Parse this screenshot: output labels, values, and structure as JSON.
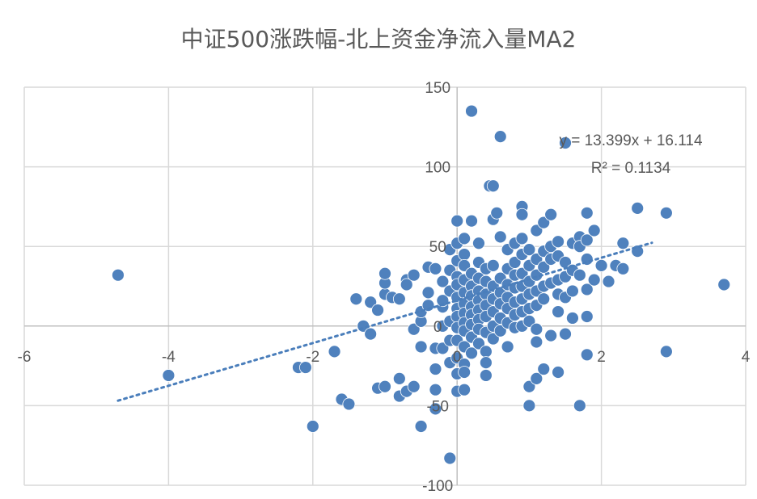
{
  "chart_data": {
    "type": "scatter",
    "title": "中证500涨跌幅-北上资金净流入量MA2",
    "xlabel": "",
    "ylabel": "",
    "xlim": [
      -6,
      4
    ],
    "ylim": [
      -100,
      150
    ],
    "x_ticks": [
      -6,
      -4,
      -2,
      0,
      2,
      4
    ],
    "y_ticks": [
      -100,
      -50,
      0,
      50,
      100,
      150
    ],
    "x_tick_labels": [
      "-6",
      "-4",
      "-2",
      "0",
      "2",
      "4"
    ],
    "y_tick_labels": [
      "-100",
      "-50",
      "0",
      "50",
      "100",
      "150"
    ],
    "grid": true,
    "color": "#4f81bd",
    "trendline": {
      "type": "linear",
      "slope": 13.399,
      "intercept": 16.114,
      "x_range": [
        -4.7,
        2.7
      ],
      "equation": "y = 13.399x + 16.114",
      "r_squared": "R² = 0.1134",
      "color": "#4a7ebb"
    },
    "points": [
      [
        -4.7,
        32
      ],
      [
        -4.0,
        -31
      ],
      [
        -2.2,
        -26
      ],
      [
        -2.1,
        -26
      ],
      [
        -2.0,
        -63
      ],
      [
        -1.6,
        -46
      ],
      [
        -1.7,
        -16
      ],
      [
        -1.5,
        -49
      ],
      [
        -1.4,
        17
      ],
      [
        -1.3,
        0
      ],
      [
        -1.2,
        -5
      ],
      [
        -1.1,
        -39
      ],
      [
        -1.0,
        -38
      ],
      [
        -1.2,
        15
      ],
      [
        -1.1,
        10
      ],
      [
        -1.0,
        20
      ],
      [
        -1.0,
        27
      ],
      [
        -1.0,
        33
      ],
      [
        -0.9,
        18
      ],
      [
        -0.8,
        17
      ],
      [
        -0.8,
        -44
      ],
      [
        -0.8,
        -33
      ],
      [
        -0.7,
        -41
      ],
      [
        -0.7,
        29
      ],
      [
        -0.7,
        26
      ],
      [
        -0.6,
        32
      ],
      [
        -0.6,
        -2
      ],
      [
        -0.6,
        -38
      ],
      [
        -0.5,
        -63
      ],
      [
        -0.5,
        3
      ],
      [
        -0.5,
        9
      ],
      [
        -0.5,
        -13
      ],
      [
        -0.4,
        21
      ],
      [
        -0.4,
        13
      ],
      [
        -0.4,
        37
      ],
      [
        -0.3,
        36
      ],
      [
        -0.3,
        -52
      ],
      [
        -0.3,
        -40
      ],
      [
        -0.3,
        -27
      ],
      [
        -0.3,
        -14
      ],
      [
        -0.2,
        28
      ],
      [
        -0.2,
        12
      ],
      [
        -0.2,
        0
      ],
      [
        -0.2,
        16
      ],
      [
        -0.2,
        -14
      ],
      [
        -0.1,
        48
      ],
      [
        -0.1,
        35
      ],
      [
        -0.1,
        22
      ],
      [
        -0.1,
        3
      ],
      [
        -0.1,
        -9
      ],
      [
        -0.1,
        -23
      ],
      [
        -0.1,
        -83
      ],
      [
        0.0,
        66
      ],
      [
        0.0,
        52
      ],
      [
        0.0,
        41
      ],
      [
        0.0,
        31
      ],
      [
        0.0,
        26
      ],
      [
        0.0,
        18
      ],
      [
        0.0,
        11
      ],
      [
        0.0,
        6
      ],
      [
        0.0,
        -1
      ],
      [
        0.0,
        -9
      ],
      [
        0.0,
        -20
      ],
      [
        0.0,
        -30
      ],
      [
        0.0,
        -41
      ],
      [
        0.1,
        55
      ],
      [
        0.1,
        45
      ],
      [
        0.1,
        38
      ],
      [
        0.1,
        29
      ],
      [
        0.1,
        21
      ],
      [
        0.1,
        14
      ],
      [
        0.1,
        8
      ],
      [
        0.1,
        2
      ],
      [
        0.1,
        -3
      ],
      [
        0.1,
        -13
      ],
      [
        0.1,
        -24
      ],
      [
        0.1,
        -29
      ],
      [
        0.1,
        -40
      ],
      [
        0.2,
        135
      ],
      [
        0.2,
        66
      ],
      [
        0.2,
        33
      ],
      [
        0.2,
        25
      ],
      [
        0.2,
        19
      ],
      [
        0.2,
        12
      ],
      [
        0.2,
        7
      ],
      [
        0.2,
        1
      ],
      [
        0.2,
        -7
      ],
      [
        0.2,
        -17
      ],
      [
        0.3,
        52
      ],
      [
        0.3,
        40
      ],
      [
        0.3,
        30
      ],
      [
        0.3,
        22
      ],
      [
        0.3,
        16
      ],
      [
        0.3,
        10
      ],
      [
        0.3,
        4
      ],
      [
        0.3,
        -2
      ],
      [
        0.3,
        -11
      ],
      [
        0.4,
        36
      ],
      [
        0.4,
        28
      ],
      [
        0.4,
        20
      ],
      [
        0.4,
        13
      ],
      [
        0.4,
        6
      ],
      [
        0.4,
        -4
      ],
      [
        0.4,
        -16
      ],
      [
        0.4,
        -23
      ],
      [
        0.4,
        -31
      ],
      [
        0.45,
        88
      ],
      [
        0.5,
        88
      ],
      [
        0.5,
        67
      ],
      [
        0.5,
        38
      ],
      [
        0.5,
        25
      ],
      [
        0.5,
        17
      ],
      [
        0.5,
        9
      ],
      [
        0.5,
        0
      ],
      [
        0.5,
        -8
      ],
      [
        0.55,
        71
      ],
      [
        0.6,
        119
      ],
      [
        0.6,
        56
      ],
      [
        0.6,
        30
      ],
      [
        0.6,
        21
      ],
      [
        0.6,
        14
      ],
      [
        0.6,
        5
      ],
      [
        0.6,
        -3
      ],
      [
        0.7,
        48
      ],
      [
        0.7,
        36
      ],
      [
        0.7,
        26
      ],
      [
        0.7,
        18
      ],
      [
        0.7,
        11
      ],
      [
        0.7,
        2
      ],
      [
        0.7,
        -13
      ],
      [
        0.8,
        52
      ],
      [
        0.8,
        40
      ],
      [
        0.8,
        32
      ],
      [
        0.8,
        24
      ],
      [
        0.8,
        15
      ],
      [
        0.8,
        7
      ],
      [
        0.8,
        -1
      ],
      [
        0.9,
        75
      ],
      [
        0.9,
        70
      ],
      [
        0.9,
        55
      ],
      [
        0.9,
        45
      ],
      [
        0.9,
        33
      ],
      [
        0.9,
        25
      ],
      [
        0.9,
        17
      ],
      [
        0.9,
        9
      ],
      [
        0.9,
        0
      ],
      [
        1.0,
        48
      ],
      [
        1.0,
        38
      ],
      [
        1.0,
        28
      ],
      [
        1.0,
        20
      ],
      [
        1.0,
        11
      ],
      [
        1.0,
        3
      ],
      [
        1.0,
        -38
      ],
      [
        1.0,
        -50
      ],
      [
        1.1,
        60
      ],
      [
        1.1,
        42
      ],
      [
        1.1,
        32
      ],
      [
        1.1,
        22
      ],
      [
        1.1,
        13
      ],
      [
        1.1,
        -2
      ],
      [
        1.1,
        -10
      ],
      [
        1.1,
        -33
      ],
      [
        1.2,
        65
      ],
      [
        1.2,
        47
      ],
      [
        1.2,
        37
      ],
      [
        1.2,
        25
      ],
      [
        1.2,
        17
      ],
      [
        1.2,
        -27
      ],
      [
        1.3,
        70
      ],
      [
        1.3,
        50
      ],
      [
        1.3,
        42
      ],
      [
        1.3,
        27
      ],
      [
        1.3,
        -6
      ],
      [
        1.4,
        53
      ],
      [
        1.4,
        44
      ],
      [
        1.4,
        29
      ],
      [
        1.4,
        20
      ],
      [
        1.4,
        9
      ],
      [
        1.4,
        -29
      ],
      [
        1.5,
        115
      ],
      [
        1.5,
        40
      ],
      [
        1.5,
        31
      ],
      [
        1.5,
        18
      ],
      [
        1.5,
        -5
      ],
      [
        1.6,
        52
      ],
      [
        1.6,
        35
      ],
      [
        1.6,
        22
      ],
      [
        1.6,
        5
      ],
      [
        1.7,
        56
      ],
      [
        1.7,
        50
      ],
      [
        1.7,
        32
      ],
      [
        1.7,
        -50
      ],
      [
        1.8,
        71
      ],
      [
        1.8,
        54
      ],
      [
        1.8,
        42
      ],
      [
        1.8,
        23
      ],
      [
        1.8,
        6
      ],
      [
        1.8,
        -18
      ],
      [
        1.9,
        60
      ],
      [
        1.9,
        29
      ],
      [
        2.0,
        38
      ],
      [
        2.1,
        28
      ],
      [
        2.2,
        38
      ],
      [
        2.3,
        36
      ],
      [
        2.3,
        52
      ],
      [
        2.5,
        47
      ],
      [
        2.5,
        74
      ],
      [
        2.9,
        71
      ],
      [
        2.9,
        -16
      ],
      [
        3.7,
        26
      ]
    ]
  }
}
